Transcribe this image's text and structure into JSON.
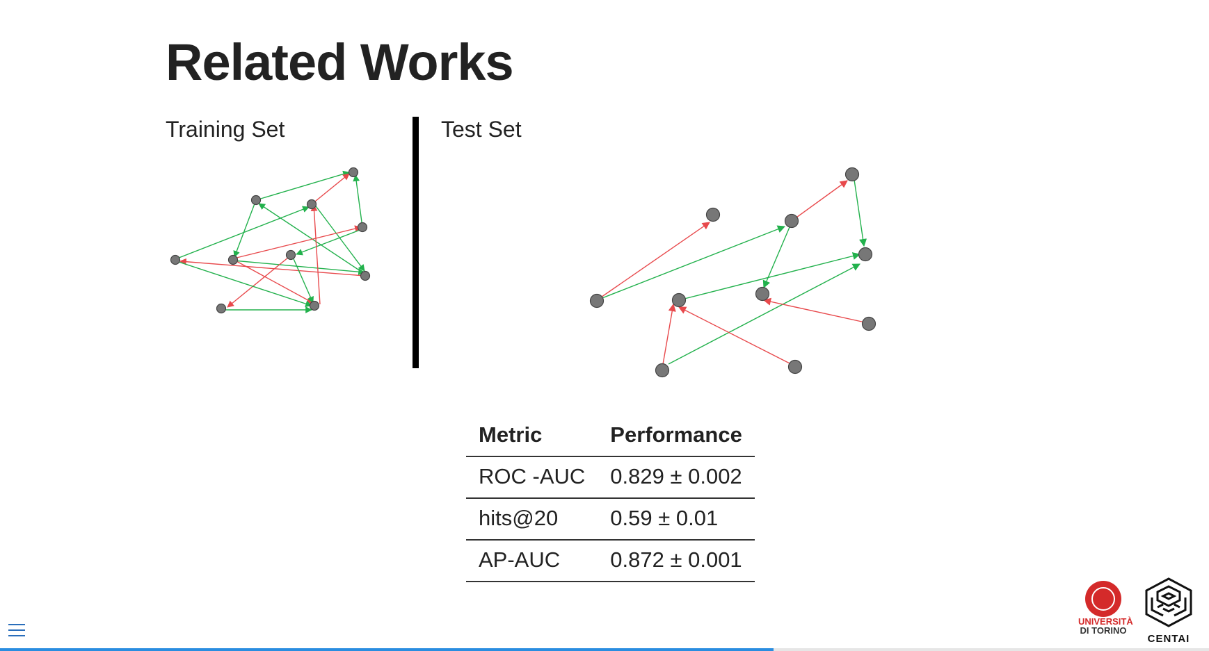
{
  "slide": {
    "title": "Related Works",
    "training_label": "Training Set",
    "test_label": "Test Set"
  },
  "colors": {
    "positive_edge": "#22b14c",
    "negative_edge": "#e8494c",
    "node_fill": "#777777",
    "accent": "#2a8de0"
  },
  "metrics_table": {
    "headers": [
      "Metric",
      "Performance"
    ],
    "rows": [
      {
        "metric": "ROC -AUC",
        "performance": "0.829 ± 0.002"
      },
      {
        "metric": "hits@20",
        "performance": "0.59 ± 0.01"
      },
      {
        "metric": "AP-AUC",
        "performance": "0.872 ± 0.001"
      }
    ]
  },
  "footer": {
    "menu_icon": "hamburger-menu-icon",
    "progress_fraction": 0.64,
    "unito_logo": {
      "line1": "UNIVERSITÀ",
      "line2": "DI TORINO"
    },
    "centai_logo": {
      "text": "CENTAI"
    }
  }
}
